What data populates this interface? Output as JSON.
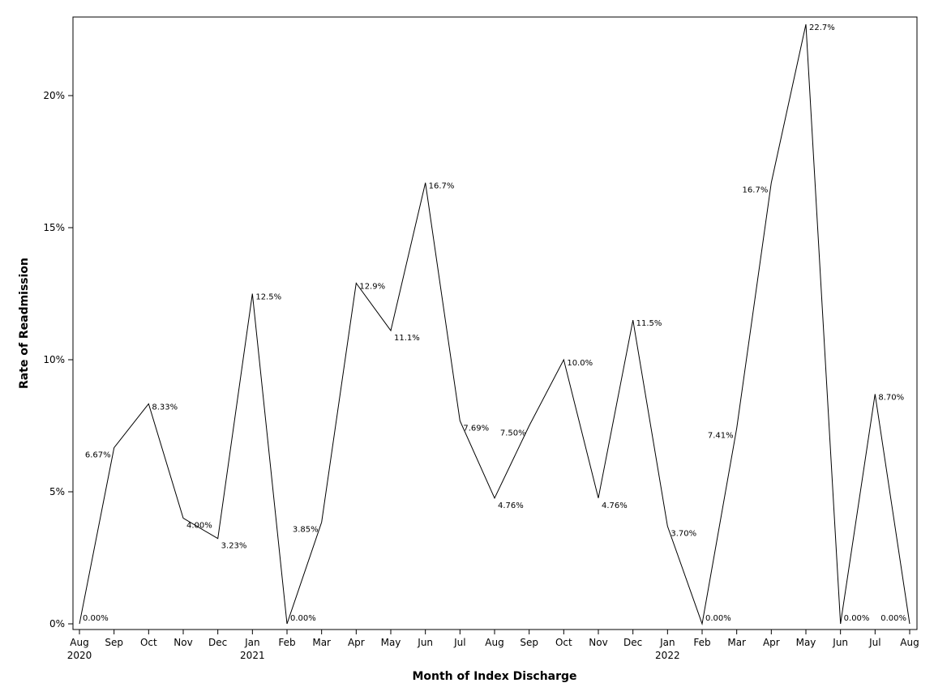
{
  "chart_data": {
    "type": "line",
    "title": "",
    "xlabel": "Month of Index Discharge",
    "ylabel": "Rate of Readmission",
    "ylim": [
      0,
      0.23
    ],
    "y_ticks": [
      {
        "value": 0,
        "label": "0%"
      },
      {
        "value": 0.05,
        "label": "5%"
      },
      {
        "value": 0.1,
        "label": "10%"
      },
      {
        "value": 0.15,
        "label": "15%"
      },
      {
        "value": 0.2,
        "label": "20%"
      }
    ],
    "x": [
      "2020-08",
      "2020-09",
      "2020-10",
      "2020-11",
      "2020-12",
      "2021-01",
      "2021-02",
      "2021-03",
      "2021-04",
      "2021-05",
      "2021-06",
      "2021-07",
      "2021-08",
      "2021-09",
      "2021-10",
      "2021-11",
      "2021-12",
      "2022-01",
      "2022-02",
      "2022-03",
      "2022-04",
      "2022-05",
      "2022-06",
      "2022-07",
      "2022-08"
    ],
    "x_tick_labels": [
      {
        "month": "Aug",
        "year": "2020"
      },
      {
        "month": "Sep",
        "year": ""
      },
      {
        "month": "Oct",
        "year": ""
      },
      {
        "month": "Nov",
        "year": ""
      },
      {
        "month": "Dec",
        "year": ""
      },
      {
        "month": "Jan",
        "year": "2021"
      },
      {
        "month": "Feb",
        "year": ""
      },
      {
        "month": "Mar",
        "year": ""
      },
      {
        "month": "Apr",
        "year": ""
      },
      {
        "month": "May",
        "year": ""
      },
      {
        "month": "Jun",
        "year": ""
      },
      {
        "month": "Jul",
        "year": ""
      },
      {
        "month": "Aug",
        "year": ""
      },
      {
        "month": "Sep",
        "year": ""
      },
      {
        "month": "Oct",
        "year": ""
      },
      {
        "month": "Nov",
        "year": ""
      },
      {
        "month": "Dec",
        "year": ""
      },
      {
        "month": "Jan",
        "year": "2022"
      },
      {
        "month": "Feb",
        "year": ""
      },
      {
        "month": "Mar",
        "year": ""
      },
      {
        "month": "Apr",
        "year": ""
      },
      {
        "month": "May",
        "year": ""
      },
      {
        "month": "Jun",
        "year": ""
      },
      {
        "month": "Jul",
        "year": ""
      },
      {
        "month": "Aug",
        "year": ""
      }
    ],
    "series": [
      {
        "values": [
          0.0,
          0.0667,
          0.0833,
          0.04,
          0.0323,
          0.125,
          0.0,
          0.0385,
          0.129,
          0.111,
          0.167,
          0.0769,
          0.0476,
          0.075,
          0.1,
          0.0476,
          0.115,
          0.037,
          0.0,
          0.0741,
          0.167,
          0.227,
          0.0,
          0.087,
          0.0
        ],
        "data_labels": [
          "0.00%",
          "6.67%",
          "8.33%",
          "4.00%",
          "3.23%",
          "12.5%",
          "0.00%",
          "3.85%",
          "12.9%",
          "11.1%",
          "16.7%",
          "7.69%",
          "4.76%",
          "7.50%",
          "10.0%",
          "4.76%",
          "11.5%",
          "3.70%",
          "0.00%",
          "7.41%",
          "16.7%",
          "22.7%",
          "0.00%",
          "8.70%",
          "0.00%"
        ],
        "color": "#000000"
      }
    ],
    "grid": false,
    "legend": "none"
  }
}
